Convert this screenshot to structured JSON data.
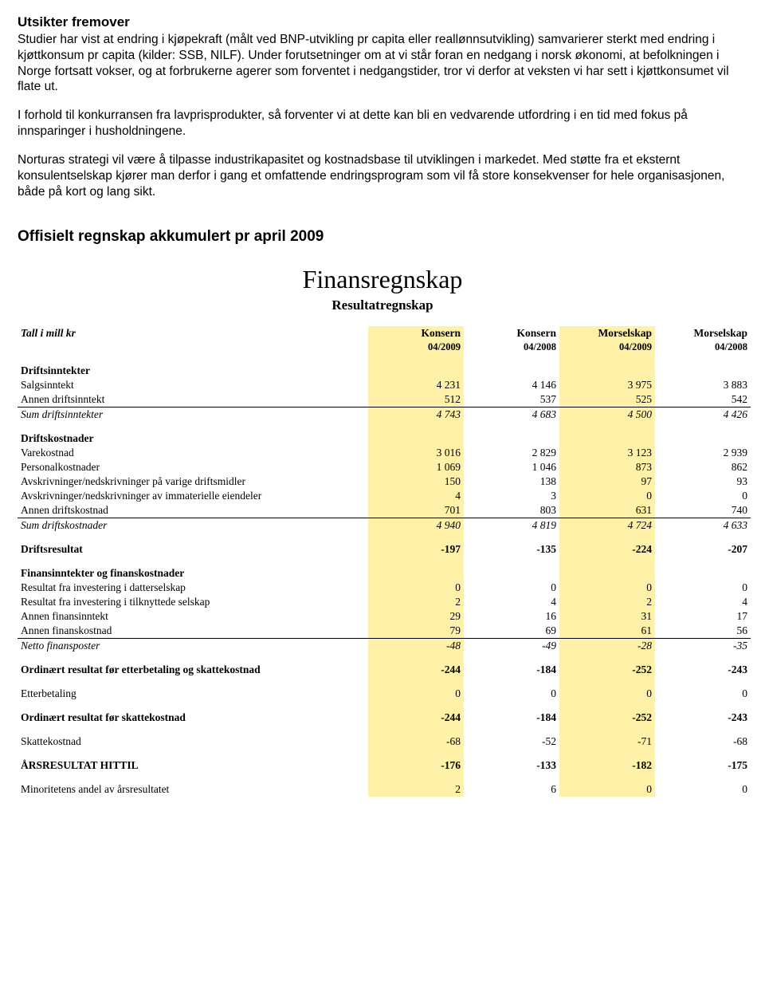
{
  "heading1": "Utsikter fremover",
  "p1": "Studier har vist at endring i kjøpekraft (målt ved BNP-utvikling pr capita eller reallønnsutvikling) samvarierer sterkt med endring i kjøttkonsum pr capita (kilder: SSB, NILF). Under forutsetninger om at vi står foran en nedgang i norsk økonomi, at befolkningen i Norge fortsatt vokser, og at forbrukerne agerer som forventet i nedgangstider, tror vi derfor at veksten vi har sett i kjøttkonsumet vil flate ut.",
  "p2": "I forhold til konkurransen fra lavprisprodukter, så forventer vi at dette kan bli en vedvarende utfordring i en tid med fokus på innsparinger i husholdningene.",
  "p3": "Norturas strategi vil være å tilpasse industrikapasitet og kostnadsbase til utviklingen i markedet. Med støtte fra et eksternt konsulentselskap kjører man derfor i gang et omfattende endringsprogram som vil få store konsekvenser for hele organisasjonen, både på kort og lang sikt.",
  "heading2": "Offisielt regnskap akkumulert pr april 2009",
  "mainTitle": "Finansregnskap",
  "subTitle": "Resultatregnskap",
  "colHeaders": {
    "label": "Tall i mill kr",
    "c1": "Konsern",
    "c2": "Konsern",
    "c3": "Morselskap",
    "c4": "Morselskap"
  },
  "colHeaders2": {
    "c1": "04/2009",
    "c2": "04/2008",
    "c3": "04/2009",
    "c4": "04/2008"
  },
  "highlightCols": [
    true,
    false,
    true,
    false
  ],
  "sections": [
    {
      "type": "section",
      "label": "Driftsinntekter"
    },
    {
      "type": "row",
      "label": "Salgsinntekt",
      "v": [
        "4 231",
        "4 146",
        "3 975",
        "3 883"
      ]
    },
    {
      "type": "row",
      "label": "Annen driftsinntekt",
      "v": [
        "512",
        "537",
        "525",
        "542"
      ]
    },
    {
      "type": "sum",
      "label": "Sum driftsinntekter",
      "v": [
        "4 743",
        "4 683",
        "4 500",
        "4 426"
      ],
      "italic": true,
      "borderTop": true
    },
    {
      "type": "spacer"
    },
    {
      "type": "section",
      "label": "Driftskostnader"
    },
    {
      "type": "row",
      "label": "Varekostnad",
      "v": [
        "3 016",
        "2 829",
        "3 123",
        "2 939"
      ]
    },
    {
      "type": "row",
      "label": "Personalkostnader",
      "v": [
        "1 069",
        "1 046",
        "873",
        "862"
      ]
    },
    {
      "type": "row",
      "label": "Avskrivninger/nedskrivninger på varige driftsmidler",
      "v": [
        "150",
        "138",
        "97",
        "93"
      ]
    },
    {
      "type": "row",
      "label": "Avskrivninger/nedskrivninger av immaterielle eiendeler",
      "v": [
        "4",
        "3",
        "0",
        "0"
      ]
    },
    {
      "type": "row",
      "label": "Annen driftskostnad",
      "v": [
        "701",
        "803",
        "631",
        "740"
      ]
    },
    {
      "type": "sum",
      "label": "Sum driftskostnader",
      "v": [
        "4 940",
        "4 819",
        "4 724",
        "4 633"
      ],
      "italic": true,
      "borderTop": true
    },
    {
      "type": "spacer"
    },
    {
      "type": "bold",
      "label": "Driftsresultat",
      "v": [
        "-197",
        "-135",
        "-224",
        "-207"
      ]
    },
    {
      "type": "spacer"
    },
    {
      "type": "section",
      "label": "Finansinntekter og finanskostnader"
    },
    {
      "type": "row",
      "label": "Resultat fra investering i datterselskap",
      "v": [
        "0",
        "0",
        "0",
        "0"
      ]
    },
    {
      "type": "row",
      "label": "Resultat fra investering i tilknyttede selskap",
      "v": [
        "2",
        "4",
        "2",
        "4"
      ]
    },
    {
      "type": "row",
      "label": "Annen finansinntekt",
      "v": [
        "29",
        "16",
        "31",
        "17"
      ]
    },
    {
      "type": "row",
      "label": "Annen finanskostnad",
      "v": [
        "79",
        "69",
        "61",
        "56"
      ]
    },
    {
      "type": "sum",
      "label": "Netto finansposter",
      "v": [
        "-48",
        "-49",
        "-28",
        "-35"
      ],
      "italic": true,
      "borderTop": true
    },
    {
      "type": "spacer"
    },
    {
      "type": "bold",
      "label": "Ordinært resultat før etterbetaling og skattekostnad",
      "v": [
        "-244",
        "-184",
        "-252",
        "-243"
      ]
    },
    {
      "type": "spacer"
    },
    {
      "type": "row",
      "label": "Etterbetaling",
      "v": [
        "0",
        "0",
        "0",
        "0"
      ]
    },
    {
      "type": "spacer"
    },
    {
      "type": "bold",
      "label": "Ordinært resultat før skattekostnad",
      "v": [
        "-244",
        "-184",
        "-252",
        "-243"
      ]
    },
    {
      "type": "spacer"
    },
    {
      "type": "row",
      "label": "Skattekostnad",
      "v": [
        "-68",
        "-52",
        "-71",
        "-68"
      ]
    },
    {
      "type": "spacer"
    },
    {
      "type": "bold",
      "label": "ÅRSRESULTAT HITTIL",
      "v": [
        "-176",
        "-133",
        "-182",
        "-175"
      ]
    },
    {
      "type": "spacer"
    },
    {
      "type": "row",
      "label": "Minoritetens andel av årsresultatet",
      "v": [
        "2",
        "6",
        "0",
        "0"
      ]
    }
  ]
}
